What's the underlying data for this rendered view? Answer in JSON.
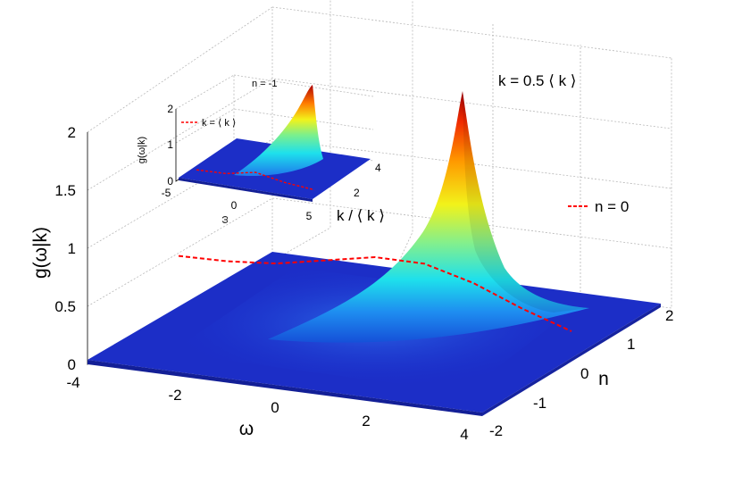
{
  "chart_data": [
    {
      "type": "surface",
      "xlabel": "ω",
      "ylabel": "n",
      "zlabel": "g(ω|k)",
      "xlim": [
        -4,
        4
      ],
      "ylim": [
        -2,
        2
      ],
      "zlim": [
        0,
        2.2
      ],
      "x_ticks": [
        "-4",
        "-2",
        "0",
        "2",
        "4"
      ],
      "y_ticks": [
        "-2",
        "-1",
        "0",
        "1",
        "2"
      ],
      "z_ticks": [
        "0",
        "0.5",
        "1",
        "1.5",
        "2"
      ],
      "annotation": "k = 0.5 ⟨ k ⟩",
      "colormap": "jet",
      "surface_peak": {
        "omega": 3.3,
        "n": 2,
        "value": 2.05
      },
      "series": [
        {
          "name": "n = 0",
          "color": "#ff0000",
          "style": "dashed",
          "n": 0,
          "x": [
            -4,
            -3,
            -2,
            -1,
            0,
            1,
            2,
            3,
            4
          ],
          "y": [
            0.47,
            0.48,
            0.52,
            0.61,
            0.7,
            0.7,
            0.58,
            0.4,
            0.25
          ]
        }
      ]
    },
    {
      "type": "surface",
      "xlabel": "ω",
      "ylabel": "k / ⟨ k ⟩",
      "zlabel": "g(ω|k)",
      "xlim": [
        -5,
        5
      ],
      "ylim": [
        0,
        5
      ],
      "zlim": [
        0,
        2
      ],
      "x_ticks": [
        "-5",
        "0",
        "5"
      ],
      "y_ticks": [
        "2",
        "4"
      ],
      "z_ticks": [
        "0",
        "1",
        "2"
      ],
      "title": "n = -1",
      "colormap": "jet",
      "series": [
        {
          "name": "k = ⟨ k ⟩",
          "color": "#ff0000",
          "style": "dashed",
          "k_over_mean": 1,
          "x": [
            -5,
            -2.5,
            0,
            2.5,
            5
          ],
          "y": [
            0.12,
            0.14,
            0.3,
            0.14,
            0.06
          ]
        }
      ]
    }
  ]
}
